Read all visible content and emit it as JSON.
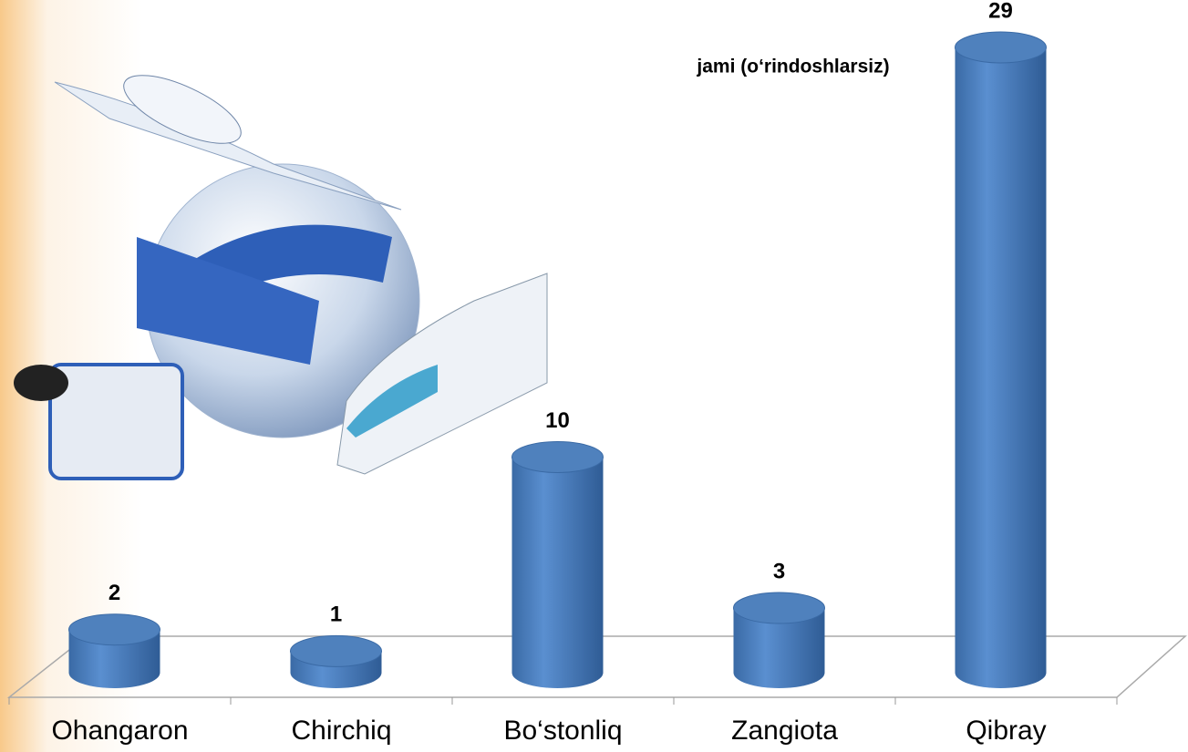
{
  "chart_data": {
    "type": "bar",
    "title": "jami (o‘rindoshlarsiz)",
    "categories": [
      "Ohangaron",
      "Chirchiq",
      "Bo‘stonliq",
      "Zangiota",
      "Qibray"
    ],
    "values": [
      2,
      1,
      10,
      3,
      29
    ],
    "color": "#4f81bd"
  }
}
